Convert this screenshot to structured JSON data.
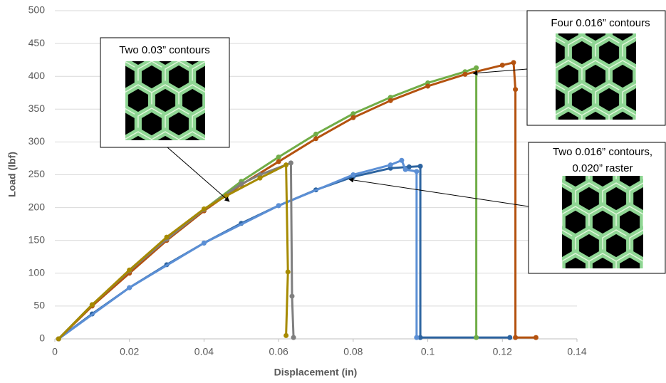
{
  "chart_data": {
    "type": "line",
    "xlabel": "Displacement (in)",
    "ylabel": "Load (lbf)",
    "xlim": [
      0,
      0.14
    ],
    "xticks": [
      0,
      0.02,
      0.04,
      0.06,
      0.08,
      0.1,
      0.12,
      0.14
    ],
    "ylim": [
      0,
      500
    ],
    "yticks": [
      0,
      50,
      100,
      150,
      200,
      250,
      300,
      350,
      400,
      450,
      500
    ],
    "grid": true,
    "series": [
      {
        "color": "#2d64a0",
        "x": [
          0.001,
          0.01,
          0.02,
          0.03,
          0.04,
          0.05,
          0.06,
          0.07,
          0.08,
          0.09,
          0.095,
          0.098,
          0.098,
          0.122
        ],
        "values": [
          0,
          38,
          78,
          113,
          146,
          176,
          203,
          227,
          247,
          260,
          262,
          263,
          2,
          2
        ]
      },
      {
        "color": "#5b8fd5",
        "x": [
          0.001,
          0.02,
          0.04,
          0.06,
          0.08,
          0.09,
          0.093,
          0.094,
          0.097,
          0.097
        ],
        "values": [
          0,
          78,
          146,
          203,
          250,
          265,
          272,
          258,
          255,
          2
        ]
      },
      {
        "color": "#70ad47",
        "x": [
          0.001,
          0.01,
          0.02,
          0.03,
          0.04,
          0.05,
          0.06,
          0.07,
          0.08,
          0.09,
          0.1,
          0.11,
          0.113,
          0.113
        ],
        "values": [
          0,
          52,
          103,
          152,
          197,
          240,
          277,
          312,
          343,
          368,
          390,
          407,
          413,
          2
        ]
      },
      {
        "color": "#b4520f",
        "x": [
          0.001,
          0.01,
          0.02,
          0.03,
          0.04,
          0.05,
          0.06,
          0.07,
          0.08,
          0.09,
          0.1,
          0.11,
          0.12,
          0.123,
          0.1235,
          0.1235,
          0.129
        ],
        "values": [
          0,
          50,
          100,
          150,
          195,
          235,
          270,
          305,
          337,
          363,
          385,
          403,
          417,
          421,
          380,
          2,
          2
        ]
      },
      {
        "color": "#7f7f7f",
        "x": [
          0.001,
          0.01,
          0.02,
          0.03,
          0.04,
          0.05,
          0.055,
          0.0633,
          0.0636,
          0.064
        ],
        "values": [
          0,
          52,
          104,
          152,
          197,
          236,
          250,
          268,
          65,
          2
        ]
      },
      {
        "color": "#a68a00",
        "x": [
          0.001,
          0.01,
          0.02,
          0.03,
          0.04,
          0.046,
          0.055,
          0.062,
          0.0625,
          0.062
        ],
        "values": [
          0,
          52,
          105,
          155,
          198,
          218,
          245,
          265,
          102,
          5
        ]
      }
    ],
    "annotations": [
      {
        "text": "Two 0.03” contours"
      },
      {
        "text": "Four 0.016” contours"
      },
      {
        "lines": [
          "Two 0.016” contours,",
          "0.020” raster"
        ]
      }
    ]
  }
}
